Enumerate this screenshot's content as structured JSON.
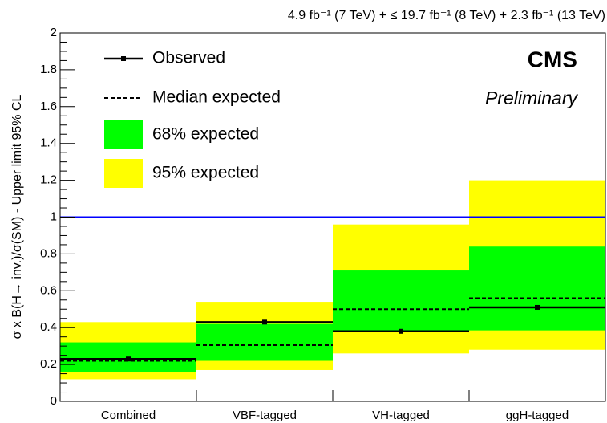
{
  "chart_data": {
    "type": "limit",
    "title": "4.9 fb⁻¹ (7 TeV) + ≤ 19.7 fb⁻¹ (8 TeV) + 2.3 fb⁻¹ (13 TeV)",
    "annotations": [
      "CMS",
      "Preliminary"
    ],
    "ylabel": "σ x B(H→ inv.)/σ(SM) - Upper limit 95% CL",
    "categories": [
      "Combined",
      "VBF-tagged",
      "VH-tagged",
      "ggH-tagged"
    ],
    "series": [
      {
        "name": "Observed",
        "color": "#000000",
        "values": [
          0.23,
          0.43,
          0.38,
          0.51
        ]
      },
      {
        "name": "Median expected",
        "color": "#000000",
        "values": [
          0.22,
          0.305,
          0.5,
          0.56
        ]
      },
      {
        "name": "68% expected",
        "color": "#00ff00",
        "values": [
          [
            0.16,
            0.32
          ],
          [
            0.22,
            0.42
          ],
          [
            0.38,
            0.71
          ],
          [
            0.385,
            0.84
          ]
        ]
      },
      {
        "name": "95% expected",
        "color": "#ffff00",
        "values": [
          [
            0.12,
            0.43
          ],
          [
            0.17,
            0.54
          ],
          [
            0.26,
            0.96
          ],
          [
            0.28,
            1.2
          ]
        ]
      }
    ],
    "hline": 1,
    "hline_color": "#0000ff",
    "ylim": [
      0,
      2
    ],
    "yticks": [
      0,
      0.2,
      0.4,
      0.6,
      0.8,
      1,
      1.2,
      1.4,
      1.6,
      1.8,
      2
    ]
  }
}
